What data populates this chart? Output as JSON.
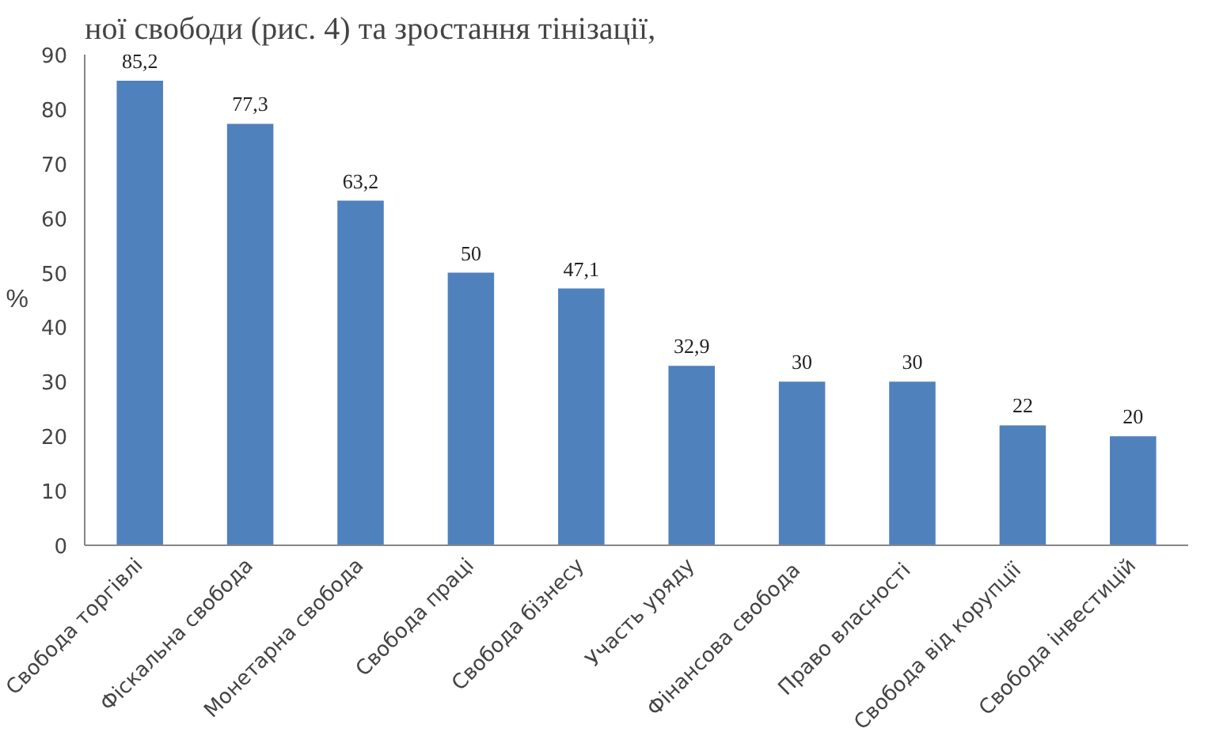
{
  "chart_data": {
    "type": "bar",
    "ylabel": "%",
    "annotations": [
      "ної свободи (рис. 4) та зростання тінізації,"
    ],
    "categories": [
      "Свобода торгівлі",
      "Фіскальна свобода",
      "Монетарна свобода",
      "Свобода праці",
      "Свобода бізнесу",
      "Участь уряду",
      "Фінансова  свобода",
      "Право  власності",
      "Свобода  від корупції",
      "Свобода інвестицій"
    ],
    "values": [
      85.2,
      77.3,
      63.2,
      50,
      47.1,
      32.9,
      30,
      30,
      22,
      20
    ],
    "value_labels": [
      "85,2",
      "77,3",
      "63,2",
      "50",
      "47,1",
      "32,9",
      "30",
      "30",
      "22",
      "20"
    ],
    "color": "#4f81bd",
    "ylim": [
      0,
      90
    ],
    "yticks": [
      0,
      10,
      20,
      30,
      40,
      50,
      60,
      70,
      80,
      90
    ],
    "grid": false
  }
}
